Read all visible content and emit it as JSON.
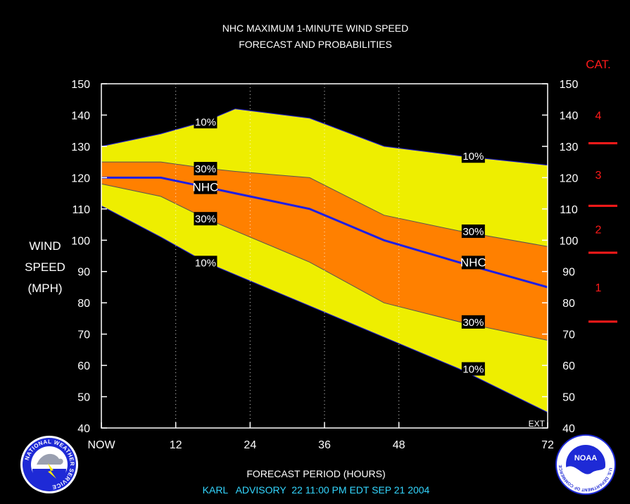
{
  "chart_data": {
    "type": "area",
    "title_line1": "NHC MAXIMUM 1-MINUTE WIND SPEED",
    "title_line2": "FORECAST AND PROBABILITIES",
    "ylabel_lines": [
      "WIND",
      "SPEED",
      "(MPH)"
    ],
    "xlabel": "FORECAST PERIOD (HOURS)",
    "advisory": "KARL   ADVISORY  22 11:00 PM EDT SEP 21 2004",
    "ylim": [
      40,
      150
    ],
    "xlim": [
      0,
      72
    ],
    "yticks": [
      40,
      50,
      60,
      70,
      80,
      90,
      100,
      110,
      120,
      130,
      140,
      150
    ],
    "xticks": [
      {
        "x": 0,
        "label": "NOW"
      },
      {
        "x": 12,
        "label": "12"
      },
      {
        "x": 24,
        "label": "24"
      },
      {
        "x": 36,
        "label": "36"
      },
      {
        "x": 48,
        "label": "48"
      },
      {
        "x": 72,
        "label": "72"
      }
    ],
    "ext_label": "EXT",
    "colors": {
      "outer_band": "#eeee00",
      "inner_band": "#ff8000",
      "nhc_line": "#1e1ee6",
      "category": "#ff1a1a",
      "frame": "#ffffff"
    },
    "x": [
      0,
      9.6,
      16.8,
      21.6,
      33.6,
      45.6,
      57.6,
      72
    ],
    "bands": {
      "upper_10": [
        130,
        134,
        138,
        142,
        139,
        130,
        127,
        124
      ],
      "upper_30": [
        125,
        125,
        123,
        122,
        120,
        108,
        103,
        98
      ],
      "nhc": [
        120,
        120,
        117,
        115,
        110,
        100,
        93,
        85
      ],
      "lower_30": [
        118,
        114,
        107,
        103,
        93,
        80,
        74,
        68
      ],
      "lower_10": [
        111,
        101,
        93,
        89,
        79,
        69,
        59,
        45
      ]
    },
    "annotations": [
      {
        "text": "10%",
        "x": 16.8,
        "y": 138
      },
      {
        "text": "30%",
        "x": 16.8,
        "y": 123
      },
      {
        "text": "NHC",
        "x": 16.8,
        "y": 117
      },
      {
        "text": "30%",
        "x": 16.8,
        "y": 107
      },
      {
        "text": "10%",
        "x": 16.8,
        "y": 93
      },
      {
        "text": "10%",
        "x": 60,
        "y": 127
      },
      {
        "text": "30%",
        "x": 60,
        "y": 103
      },
      {
        "text": "NHC",
        "x": 60,
        "y": 93
      },
      {
        "text": "30%",
        "x": 60,
        "y": 74
      },
      {
        "text": "10%",
        "x": 60,
        "y": 59
      }
    ],
    "category": {
      "title": "CAT.",
      "boundaries": [
        74,
        96,
        111,
        131
      ],
      "labels": [
        {
          "label": "1",
          "y": 85
        },
        {
          "label": "2",
          "y": 103.5
        },
        {
          "label": "3",
          "y": 121
        },
        {
          "label": "4",
          "y": 140
        }
      ]
    }
  },
  "logos": {
    "nws": "NATIONAL WEATHER SERVICE",
    "noaa": "NOAA",
    "noaa_ring": "U.S. DEPARTMENT OF COMMERCE"
  }
}
